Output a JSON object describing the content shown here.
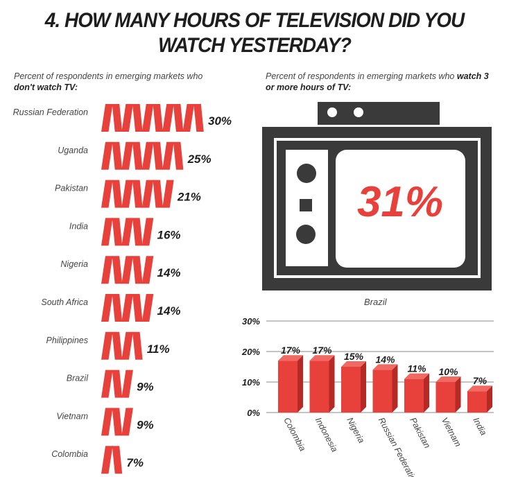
{
  "title_line1": "4. HOW MANY HOURS OF TELEVISION DID YOU",
  "title_line2": "WATCH YESTERDAY?",
  "left_subtitle_normal": "Percent of respondents in emerging markets who",
  "left_subtitle_bold": "don't watch TV:",
  "right_subtitle_normal": "Percent of respondents in emerging markets who",
  "right_subtitle_bold1": "watch 3",
  "right_subtitle_bold2": "or more hours of TV:",
  "tv_value": "31%",
  "tv_label": "Brazil",
  "colors": {
    "accent": "#e8403a",
    "accent_dark": "#b52a25",
    "tv": "#3a3a3a"
  },
  "chart_data": [
    {
      "type": "bar",
      "orientation": "horizontal",
      "subtitle": "Percent of respondents in emerging markets who don't watch TV:",
      "categories": [
        "Russian Federation",
        "Uganda",
        "Pakistan",
        "India",
        "Nigeria",
        "South Africa",
        "Philippines",
        "Brazil",
        "Vietnam",
        "Colombia"
      ],
      "values": [
        30,
        25,
        21,
        16,
        14,
        14,
        11,
        9,
        9,
        7
      ],
      "data_labels": [
        "30%",
        "25%",
        "21%",
        "16%",
        "14%",
        "14%",
        "11%",
        "9%",
        "9%",
        "7%"
      ]
    },
    {
      "type": "bar",
      "orientation": "vertical",
      "subtitle": "Percent of respondents in emerging markets who watch 3 or more hours of TV:",
      "categories": [
        "Colombia",
        "Indonesia",
        "Nigeria",
        "Russian Federation",
        "Pakistan",
        "Vietnam",
        "India"
      ],
      "values": [
        17,
        17,
        15,
        14,
        11,
        10,
        7
      ],
      "data_labels": [
        "17%",
        "17%",
        "15%",
        "14%",
        "11%",
        "10%",
        "7%"
      ],
      "yticks": [
        "0%",
        "10%",
        "20%",
        "30%"
      ],
      "ylim": [
        0,
        30
      ],
      "grid": true
    }
  ]
}
